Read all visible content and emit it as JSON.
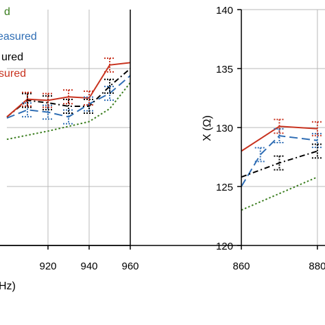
{
  "chart_data": [
    {
      "type": "line",
      "xlabel": "Hz)",
      "ylabel": "",
      "xlim": [
        900,
        960
      ],
      "ylim": [
        120,
        140
      ],
      "x_ticks": [
        "920",
        "940",
        "960"
      ],
      "y_ticks": [],
      "grid": true,
      "legend": "top-left",
      "series": [
        {
          "name": "d",
          "color": "#3a7d1e",
          "style": "dotted",
          "x": [
            900,
            920,
            940,
            950,
            960
          ],
          "y": [
            129,
            129.7,
            130.5,
            131.6,
            133.8
          ]
        },
        {
          "name": "easured",
          "color": "#2e6db4",
          "style": "dashed",
          "x": [
            900,
            910,
            920,
            930,
            940,
            950,
            960
          ],
          "y": [
            130.8,
            131.5,
            131.3,
            130.9,
            132.0,
            132.9,
            134.4
          ]
        },
        {
          "name": "ured",
          "color": "#000000",
          "style": "dashdot",
          "x": [
            900,
            910,
            920,
            930,
            940,
            950,
            960
          ],
          "y": [
            130.9,
            132.3,
            132.1,
            131.8,
            131.8,
            133.5,
            135.0
          ]
        },
        {
          "name": "sured",
          "color": "#c8321e",
          "style": "solid",
          "x": [
            900,
            910,
            920,
            930,
            940,
            950,
            960
          ],
          "y": [
            130.9,
            132.4,
            132.3,
            132.6,
            132.5,
            135.3,
            135.5
          ]
        }
      ]
    },
    {
      "type": "line",
      "xlabel": "",
      "ylabel": "X (Ω)",
      "xlim": [
        860,
        882
      ],
      "ylim": [
        120,
        140
      ],
      "x_ticks": [
        "860",
        "880"
      ],
      "y_ticks": [
        "120",
        "125",
        "130",
        "135",
        "140"
      ],
      "grid": true,
      "series": [
        {
          "name": "",
          "color": "#3a7d1e",
          "style": "dotted",
          "x": [
            860,
            870,
            880
          ],
          "y": [
            123,
            124.4,
            125.8
          ]
        },
        {
          "name": "",
          "color": "#2e6db4",
          "style": "dashed",
          "x": [
            860,
            865,
            870,
            880
          ],
          "y": [
            125.0,
            127.7,
            129.3,
            128.9
          ]
        },
        {
          "name": "",
          "color": "#000000",
          "style": "dashdot",
          "x": [
            860,
            870,
            880
          ],
          "y": [
            125.8,
            127.0,
            128.0
          ]
        },
        {
          "name": "",
          "color": "#c8321e",
          "style": "solid",
          "x": [
            860,
            870,
            880
          ],
          "y": [
            128.0,
            130.1,
            129.9
          ]
        }
      ]
    }
  ]
}
